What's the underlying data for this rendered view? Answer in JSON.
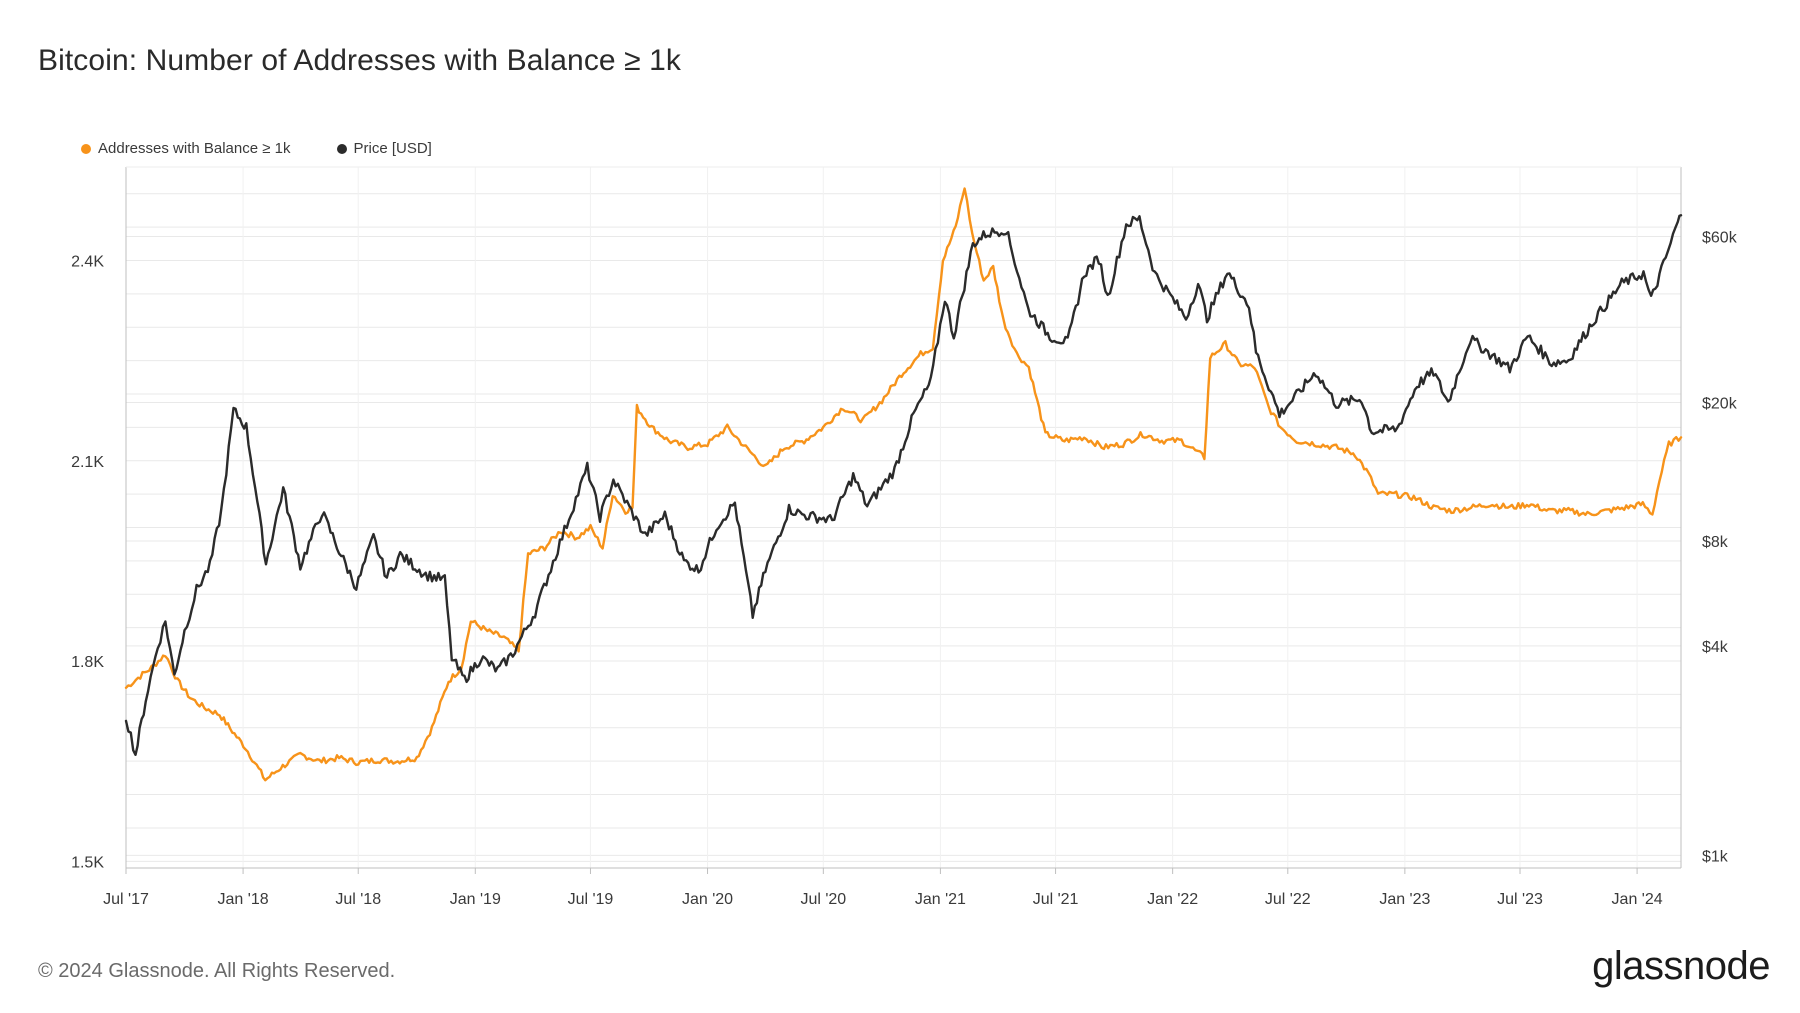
{
  "footer": {
    "copyright": "© 2024 Glassnode. All Rights Reserved.",
    "brand": "glassnode"
  },
  "colors": {
    "addresses": "#f7931a",
    "price": "#2b2b2b",
    "grid": "#e9e9e9",
    "axis": "#bfbfbf"
  },
  "chart_data": {
    "type": "line",
    "title": "Bitcoin: Number of Addresses with Balance ≥ 1k",
    "legend": [
      {
        "name": "Addresses with Balance ≥ 1k",
        "color": "#f7931a"
      },
      {
        "name": "Price [USD]",
        "color": "#2b2b2b"
      }
    ],
    "legend_position": "top-left",
    "x_range": [
      "2017-07-01",
      "2024-03-10"
    ],
    "x_ticks": [
      {
        "date": "2017-07-01",
        "label": "Jul '17"
      },
      {
        "date": "2018-01-01",
        "label": "Jan '18"
      },
      {
        "date": "2018-07-01",
        "label": "Jul '18"
      },
      {
        "date": "2019-01-01",
        "label": "Jan '19"
      },
      {
        "date": "2019-07-01",
        "label": "Jul '19"
      },
      {
        "date": "2020-01-01",
        "label": "Jan '20"
      },
      {
        "date": "2020-07-01",
        "label": "Jul '20"
      },
      {
        "date": "2021-01-01",
        "label": "Jan '21"
      },
      {
        "date": "2021-07-01",
        "label": "Jul '21"
      },
      {
        "date": "2022-01-01",
        "label": "Jan '22"
      },
      {
        "date": "2022-07-01",
        "label": "Jul '22"
      },
      {
        "date": "2023-01-01",
        "label": "Jan '23"
      },
      {
        "date": "2023-07-01",
        "label": "Jul '23"
      },
      {
        "date": "2024-01-01",
        "label": "Jan '24"
      }
    ],
    "y_left": {
      "label": "Addresses with Balance ≥ 1k",
      "range": [
        1490,
        2540
      ],
      "ticks": [
        {
          "value": 1500,
          "label": "1.5K"
        },
        {
          "value": 1800,
          "label": "1.8K"
        },
        {
          "value": 2100,
          "label": "2.1K"
        },
        {
          "value": 2400,
          "label": "2.4K"
        }
      ]
    },
    "y_right": {
      "label": "Price [USD]",
      "scale": "log",
      "range": [
        920,
        95000
      ],
      "ticks": [
        {
          "value": 1000,
          "label": "$1k"
        },
        {
          "value": 4000,
          "label": "$4k"
        },
        {
          "value": 8000,
          "label": "$8k"
        },
        {
          "value": 20000,
          "label": "$20k"
        },
        {
          "value": 60000,
          "label": "$60k"
        }
      ]
    },
    "series": [
      {
        "name": "Addresses with Balance ≥ 1k",
        "axis": "left",
        "color": "#f7931a",
        "points": [
          [
            "2017-07-01",
            1760
          ],
          [
            "2017-07-20",
            1775
          ],
          [
            "2017-08-10",
            1790
          ],
          [
            "2017-09-01",
            1810
          ],
          [
            "2017-09-20",
            1770
          ],
          [
            "2017-10-10",
            1745
          ],
          [
            "2017-11-01",
            1730
          ],
          [
            "2017-11-25",
            1720
          ],
          [
            "2017-12-15",
            1695
          ],
          [
            "2018-01-05",
            1670
          ],
          [
            "2018-02-05",
            1622
          ],
          [
            "2018-03-01",
            1640
          ],
          [
            "2018-04-01",
            1660
          ],
          [
            "2018-05-01",
            1650
          ],
          [
            "2018-06-01",
            1655
          ],
          [
            "2018-07-01",
            1648
          ],
          [
            "2018-08-01",
            1652
          ],
          [
            "2018-09-01",
            1650
          ],
          [
            "2018-10-01",
            1655
          ],
          [
            "2018-10-25",
            1700
          ],
          [
            "2018-11-20",
            1770
          ],
          [
            "2018-12-10",
            1790
          ],
          [
            "2018-12-25",
            1860
          ],
          [
            "2019-01-20",
            1845
          ],
          [
            "2019-02-15",
            1835
          ],
          [
            "2019-03-10",
            1815
          ],
          [
            "2019-03-25",
            1960
          ],
          [
            "2019-04-20",
            1970
          ],
          [
            "2019-05-15",
            1995
          ],
          [
            "2019-06-10",
            1985
          ],
          [
            "2019-07-01",
            2000
          ],
          [
            "2019-07-20",
            1970
          ],
          [
            "2019-08-05",
            2050
          ],
          [
            "2019-08-25",
            2025
          ],
          [
            "2019-09-05",
            2030
          ],
          [
            "2019-09-12",
            2180
          ],
          [
            "2019-10-05",
            2150
          ],
          [
            "2019-11-01",
            2130
          ],
          [
            "2019-12-01",
            2120
          ],
          [
            "2020-01-01",
            2125
          ],
          [
            "2020-02-01",
            2150
          ],
          [
            "2020-03-01",
            2120
          ],
          [
            "2020-04-01",
            2090
          ],
          [
            "2020-05-01",
            2120
          ],
          [
            "2020-06-01",
            2130
          ],
          [
            "2020-07-01",
            2150
          ],
          [
            "2020-08-01",
            2180
          ],
          [
            "2020-09-01",
            2160
          ],
          [
            "2020-10-01",
            2190
          ],
          [
            "2020-11-01",
            2230
          ],
          [
            "2020-12-01",
            2260
          ],
          [
            "2020-12-20",
            2270
          ],
          [
            "2021-01-05",
            2400
          ],
          [
            "2021-01-25",
            2450
          ],
          [
            "2021-02-08",
            2510
          ],
          [
            "2021-02-20",
            2440
          ],
          [
            "2021-03-10",
            2370
          ],
          [
            "2021-03-25",
            2390
          ],
          [
            "2021-04-10",
            2310
          ],
          [
            "2021-05-01",
            2260
          ],
          [
            "2021-05-20",
            2240
          ],
          [
            "2021-06-15",
            2140
          ],
          [
            "2021-07-15",
            2130
          ],
          [
            "2021-08-15",
            2135
          ],
          [
            "2021-09-15",
            2120
          ],
          [
            "2021-10-15",
            2125
          ],
          [
            "2021-11-15",
            2140
          ],
          [
            "2021-12-15",
            2130
          ],
          [
            "2022-01-15",
            2130
          ],
          [
            "2022-02-20",
            2105
          ],
          [
            "2022-03-01",
            2255
          ],
          [
            "2022-03-25",
            2275
          ],
          [
            "2022-04-15",
            2245
          ],
          [
            "2022-05-10",
            2240
          ],
          [
            "2022-06-01",
            2180
          ],
          [
            "2022-06-20",
            2150
          ],
          [
            "2022-07-15",
            2130
          ],
          [
            "2022-08-15",
            2125
          ],
          [
            "2022-09-15",
            2120
          ],
          [
            "2022-10-15",
            2110
          ],
          [
            "2022-11-05",
            2080
          ],
          [
            "2022-11-20",
            2050
          ],
          [
            "2022-12-15",
            2050
          ],
          [
            "2023-01-15",
            2045
          ],
          [
            "2023-02-15",
            2030
          ],
          [
            "2023-03-15",
            2025
          ],
          [
            "2023-04-15",
            2030
          ],
          [
            "2023-05-15",
            2035
          ],
          [
            "2023-06-15",
            2030
          ],
          [
            "2023-07-15",
            2035
          ],
          [
            "2023-08-15",
            2025
          ],
          [
            "2023-09-15",
            2025
          ],
          [
            "2023-10-15",
            2020
          ],
          [
            "2023-11-15",
            2025
          ],
          [
            "2023-12-15",
            2030
          ],
          [
            "2024-01-10",
            2035
          ],
          [
            "2024-01-25",
            2020
          ],
          [
            "2024-02-05",
            2070
          ],
          [
            "2024-02-20",
            2125
          ],
          [
            "2024-03-10",
            2135
          ]
        ]
      },
      {
        "name": "Price [USD]",
        "axis": "right",
        "color": "#2b2b2b",
        "points": [
          [
            "2017-07-01",
            2500
          ],
          [
            "2017-07-16",
            1950
          ],
          [
            "2017-08-01",
            2800
          ],
          [
            "2017-08-20",
            4000
          ],
          [
            "2017-09-01",
            4700
          ],
          [
            "2017-09-15",
            3300
          ],
          [
            "2017-10-01",
            4400
          ],
          [
            "2017-10-20",
            5800
          ],
          [
            "2017-11-10",
            6800
          ],
          [
            "2017-11-28",
            9800
          ],
          [
            "2017-12-17",
            19000
          ],
          [
            "2018-01-06",
            17000
          ],
          [
            "2018-01-20",
            11500
          ],
          [
            "2018-02-06",
            6900
          ],
          [
            "2018-03-05",
            11300
          ],
          [
            "2018-04-01",
            6800
          ],
          [
            "2018-05-05",
            9700
          ],
          [
            "2018-06-01",
            7500
          ],
          [
            "2018-06-28",
            5900
          ],
          [
            "2018-07-25",
            8200
          ],
          [
            "2018-08-15",
            6300
          ],
          [
            "2018-09-05",
            7300
          ],
          [
            "2018-10-15",
            6400
          ],
          [
            "2018-11-14",
            6200
          ],
          [
            "2018-11-25",
            3700
          ],
          [
            "2018-12-15",
            3200
          ],
          [
            "2019-01-10",
            3700
          ],
          [
            "2019-02-05",
            3400
          ],
          [
            "2019-03-01",
            3800
          ],
          [
            "2019-04-05",
            5000
          ],
          [
            "2019-05-14",
            7900
          ],
          [
            "2019-06-26",
            13000
          ],
          [
            "2019-07-16",
            9400
          ],
          [
            "2019-08-06",
            12000
          ],
          [
            "2019-09-25",
            8300
          ],
          [
            "2019-10-26",
            9500
          ],
          [
            "2019-11-25",
            7000
          ],
          [
            "2019-12-18",
            6600
          ],
          [
            "2020-01-15",
            8800
          ],
          [
            "2020-02-13",
            10300
          ],
          [
            "2020-03-12",
            4900
          ],
          [
            "2020-04-01",
            6600
          ],
          [
            "2020-05-08",
            9900
          ],
          [
            "2020-06-01",
            9500
          ],
          [
            "2020-07-15",
            9200
          ],
          [
            "2020-08-17",
            12300
          ],
          [
            "2020-09-08",
            10100
          ],
          [
            "2020-10-21",
            12800
          ],
          [
            "2020-11-20",
            18500
          ],
          [
            "2020-12-17",
            23000
          ],
          [
            "2021-01-08",
            40000
          ],
          [
            "2021-01-22",
            31000
          ],
          [
            "2021-02-21",
            57000
          ],
          [
            "2021-03-13",
            61000
          ],
          [
            "2021-04-14",
            63000
          ],
          [
            "2021-05-19",
            37000
          ],
          [
            "2021-06-22",
            31000
          ],
          [
            "2021-07-20",
            29800
          ],
          [
            "2021-08-15",
            47000
          ],
          [
            "2021-09-07",
            52000
          ],
          [
            "2021-09-21",
            40000
          ],
          [
            "2021-10-20",
            65000
          ],
          [
            "2021-11-10",
            67500
          ],
          [
            "2021-12-04",
            47000
          ],
          [
            "2022-01-22",
            35000
          ],
          [
            "2022-02-10",
            44000
          ],
          [
            "2022-02-24",
            35000
          ],
          [
            "2022-03-28",
            47500
          ],
          [
            "2022-05-01",
            38000
          ],
          [
            "2022-05-12",
            28000
          ],
          [
            "2022-06-18",
            18500
          ],
          [
            "2022-07-15",
            21000
          ],
          [
            "2022-08-14",
            24500
          ],
          [
            "2022-09-15",
            19800
          ],
          [
            "2022-10-25",
            20500
          ],
          [
            "2022-11-10",
            16500
          ],
          [
            "2022-12-20",
            16800
          ],
          [
            "2023-01-20",
            22500
          ],
          [
            "2023-02-15",
            24500
          ],
          [
            "2023-03-10",
            20000
          ],
          [
            "2023-04-14",
            30500
          ],
          [
            "2023-06-15",
            25000
          ],
          [
            "2023-07-13",
            31000
          ],
          [
            "2023-08-20",
            26000
          ],
          [
            "2023-09-15",
            26500
          ],
          [
            "2023-10-25",
            34500
          ],
          [
            "2023-12-08",
            44000
          ],
          [
            "2024-01-11",
            47000
          ],
          [
            "2024-01-23",
            39500
          ],
          [
            "2024-02-15",
            52000
          ],
          [
            "2024-03-05",
            66000
          ],
          [
            "2024-03-10",
            69000
          ]
        ]
      }
    ]
  }
}
